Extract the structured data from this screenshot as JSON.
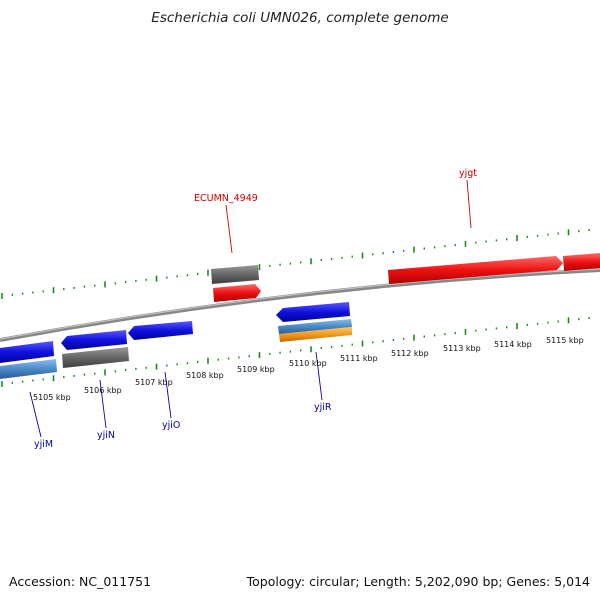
{
  "title": "Escherichia coli UMN026, complete genome",
  "footer": {
    "accession": "Accession: NC_011751",
    "summary": "Topology: circular; Length: 5,202,090 bp; Genes: 5,014"
  },
  "scale": {
    "unit": "kbp",
    "labels": [
      "5105 kbp",
      "5106 kbp",
      "5107 kbp",
      "5108 kbp",
      "5109 kbp",
      "5110 kbp",
      "5111 kbp",
      "5112 kbp",
      "5113 kbp",
      "5114 kbp",
      "5115 kbp"
    ]
  },
  "gene_labels": {
    "forward": [
      "ECUMN_4949",
      "yjgt"
    ],
    "reverse": [
      "yjiM",
      "yjiN",
      "yjiO",
      "yjiR"
    ]
  },
  "colors": {
    "forward_gene": "#ee1111",
    "reverse_gene": "#1111dd",
    "pseudo_gene": "#666666",
    "rna_gene": "#4a8ac8",
    "orange_feature": "#f39a1c",
    "backbone": "#8a8a8a",
    "tick": "#1a8a1a",
    "forward_label": "#cc0000",
    "reverse_label": "#0000aa"
  }
}
